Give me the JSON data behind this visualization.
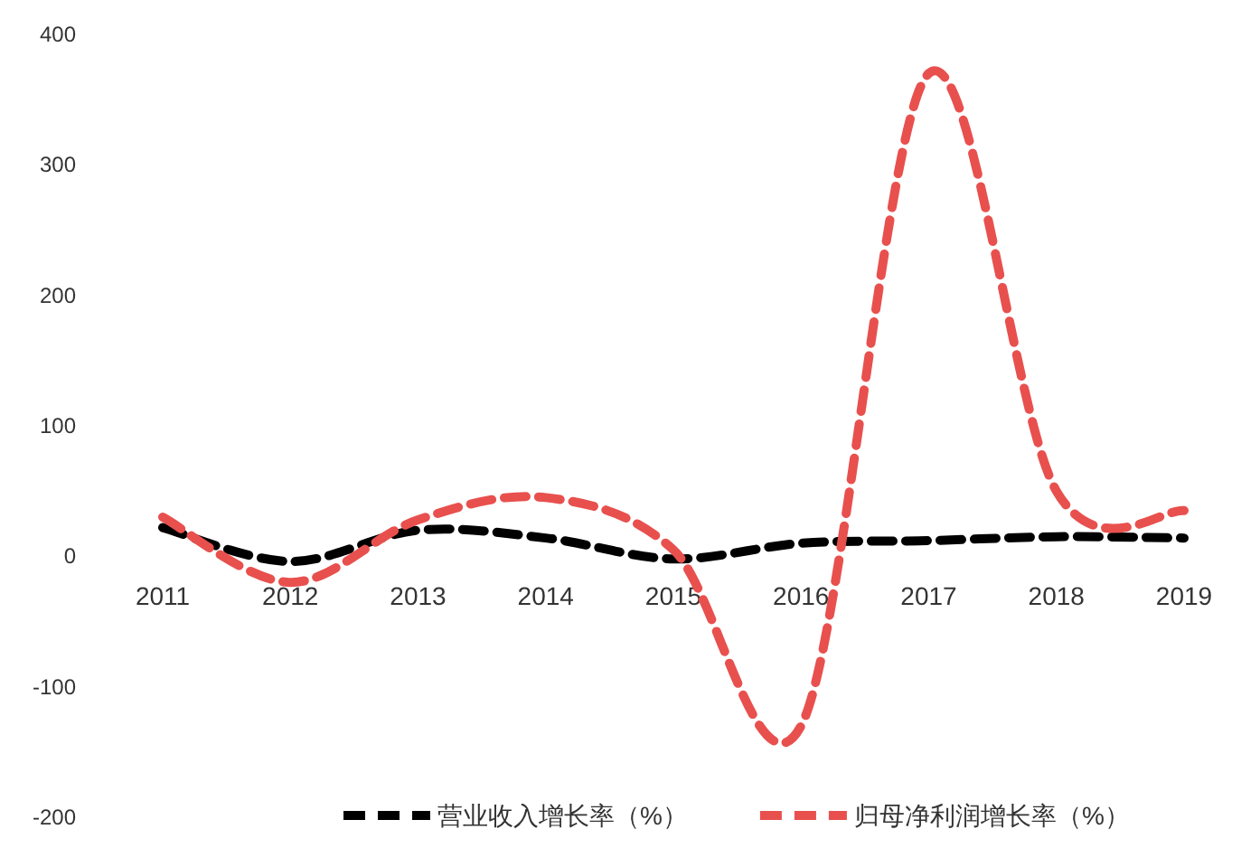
{
  "chart_data": {
    "type": "line",
    "categories": [
      "2011",
      "2012",
      "2013",
      "2014",
      "2015",
      "2016",
      "2017",
      "2018",
      "2019"
    ],
    "series": [
      {
        "name": "营业收入增长率（%）",
        "color": "#000000",
        "values": [
          22,
          -4,
          20,
          14,
          -2,
          10,
          12,
          15,
          14
        ]
      },
      {
        "name": "归母净利润增长率（%）",
        "color": "#e8504e",
        "values": [
          30,
          -20,
          28,
          45,
          5,
          -130,
          370,
          50,
          35
        ]
      }
    ],
    "ylim": [
      -200,
      400
    ],
    "yticks": [
      -200,
      -100,
      0,
      100,
      200,
      300,
      400
    ],
    "line_style": "dashed",
    "legend": "bottom",
    "grid": false
  }
}
